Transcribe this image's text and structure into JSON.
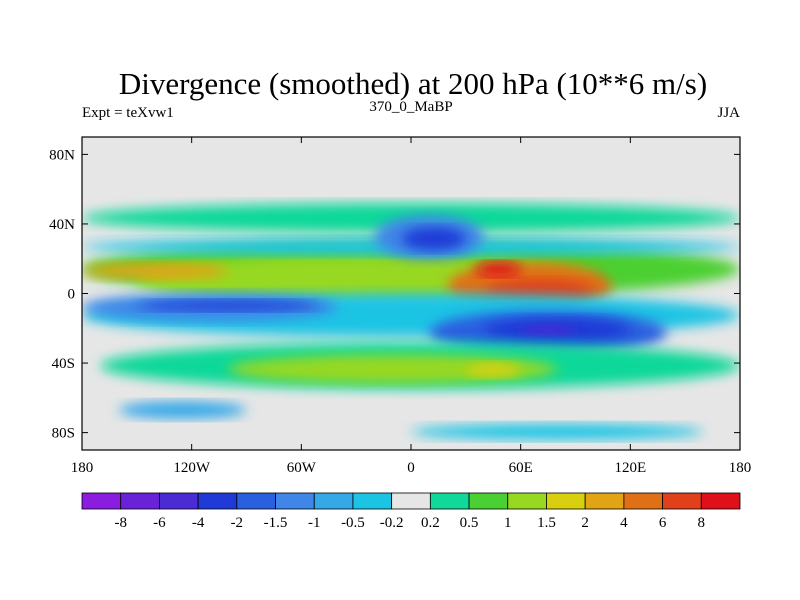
{
  "chart_data": {
    "type": "heatmap",
    "title": "Divergence (smoothed) at 200 hPa (10**6 m/s)",
    "subtitle_left": "Expt = teXvw1",
    "subtitle_center": "370_0_MaBP",
    "subtitle_right": "JJA",
    "xlabel": "",
    "ylabel": "",
    "xlim": [
      -180,
      180
    ],
    "ylim": [
      -90,
      90
    ],
    "x_ticks": [
      {
        "value": -180,
        "label": "180"
      },
      {
        "value": -120,
        "label": "120W"
      },
      {
        "value": -60,
        "label": "60W"
      },
      {
        "value": 0,
        "label": "0"
      },
      {
        "value": 60,
        "label": "60E"
      },
      {
        "value": 120,
        "label": "120E"
      },
      {
        "value": 180,
        "label": "180"
      }
    ],
    "y_ticks": [
      {
        "value": 80,
        "label": "80N"
      },
      {
        "value": 40,
        "label": "40N"
      },
      {
        "value": 0,
        "label": "0"
      },
      {
        "value": -40,
        "label": "40S"
      },
      {
        "value": -80,
        "label": "80S"
      }
    ],
    "background_color": "#e6e6e6",
    "colorbar": {
      "colors": [
        "#8b1de0",
        "#6a22d8",
        "#4a2bd4",
        "#1f3ad6",
        "#2a5fe0",
        "#3f86e8",
        "#35a8e8",
        "#1cc4e4",
        "#e6e6e6",
        "#0fd89a",
        "#4bd033",
        "#97d820",
        "#d8d00e",
        "#e0a414",
        "#e07016",
        "#e0401a",
        "#e0101a"
      ],
      "labels": [
        "-8",
        "-6",
        "-4",
        "-2",
        "-1.5",
        "-1",
        "-0.5",
        "-0.2",
        "0.2",
        "0.5",
        "1",
        "1.5",
        "2",
        "4",
        "6",
        "8"
      ]
    },
    "field_regions": [
      {
        "level": 10,
        "lon": [
          -180,
          180
        ],
        "lat": [
          -2,
          30
        ]
      },
      {
        "level": 11,
        "lon": [
          -150,
          100
        ],
        "lat": [
          -5,
          22
        ]
      },
      {
        "level": 13,
        "lon": [
          -180,
          -100
        ],
        "lat": [
          8,
          18
        ]
      },
      {
        "level": 14,
        "lon": [
          20,
          110
        ],
        "lat": [
          -10,
          18
        ]
      },
      {
        "level": 15,
        "lon": [
          40,
          100
        ],
        "lat": [
          -5,
          8
        ]
      },
      {
        "level": 16,
        "lon": [
          35,
          60
        ],
        "lat": [
          10,
          18
        ]
      },
      {
        "level": 7,
        "lon": [
          -180,
          180
        ],
        "lat": [
          -25,
          0
        ]
      },
      {
        "level": 5,
        "lon": [
          -180,
          -40
        ],
        "lat": [
          -16,
          0
        ]
      },
      {
        "level": 3,
        "lon": [
          -150,
          -50
        ],
        "lat": [
          -10,
          -4
        ]
      },
      {
        "level": 4,
        "lon": [
          10,
          140
        ],
        "lat": [
          -35,
          -10
        ]
      },
      {
        "level": 3,
        "lon": [
          40,
          120
        ],
        "lat": [
          -28,
          -14
        ]
      },
      {
        "level": 2,
        "lon": [
          60,
          90
        ],
        "lat": [
          -24,
          -18
        ]
      },
      {
        "level": 9,
        "lon": [
          -170,
          180
        ],
        "lat": [
          -55,
          -28
        ]
      },
      {
        "level": 11,
        "lon": [
          -100,
          80
        ],
        "lat": [
          -52,
          -35
        ]
      },
      {
        "level": 12,
        "lon": [
          30,
          60
        ],
        "lat": [
          -48,
          -40
        ]
      },
      {
        "level": 9,
        "lon": [
          -180,
          180
        ],
        "lat": [
          35,
          52
        ]
      },
      {
        "level": 7,
        "lon": [
          -180,
          180
        ],
        "lat": [
          22,
          32
        ]
      },
      {
        "level": 5,
        "lon": [
          -20,
          40
        ],
        "lat": [
          20,
          45
        ]
      },
      {
        "level": 3,
        "lon": [
          -5,
          30
        ],
        "lat": [
          25,
          38
        ]
      },
      {
        "level": 6,
        "lon": [
          -160,
          -90
        ],
        "lat": [
          -72,
          -62
        ]
      },
      {
        "level": 7,
        "lon": [
          0,
          160
        ],
        "lat": [
          -84,
          -75
        ]
      }
    ]
  }
}
